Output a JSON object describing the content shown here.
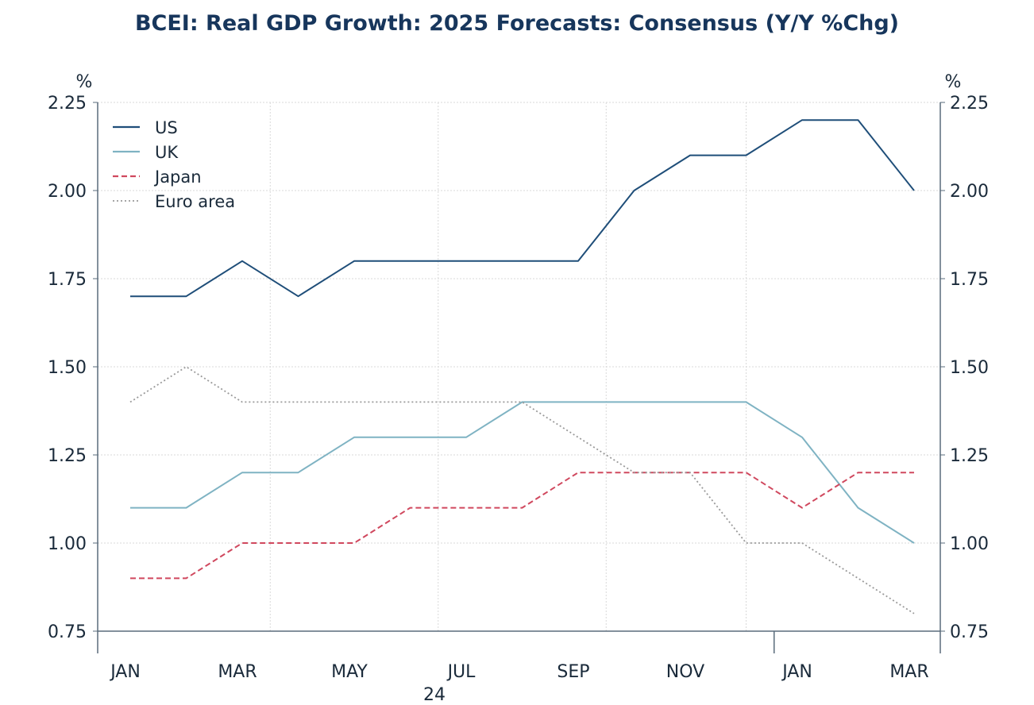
{
  "chart_data": {
    "type": "line",
    "title": "BCEI: Real GDP Growth: 2025 Forecasts: Consensus (Y/Y %Chg)",
    "left_unit": "%",
    "right_unit": "%",
    "xlabel": "",
    "ylabel": "%",
    "ylim": [
      0.75,
      2.25
    ],
    "y_ticks": [
      "0.75",
      "1.00",
      "1.25",
      "1.50",
      "1.75",
      "2.00",
      "2.25"
    ],
    "x_ticks": [
      "JAN",
      "MAR",
      "MAY",
      "JUL",
      "SEP",
      "NOV",
      "JAN",
      "MAR"
    ],
    "x_year_label": "24",
    "x": [
      "2024-01",
      "2024-02",
      "2024-03",
      "2024-04",
      "2024-05",
      "2024-06",
      "2024-07",
      "2024-08",
      "2024-09",
      "2024-10",
      "2024-11",
      "2024-12",
      "2025-01",
      "2025-02",
      "2025-03"
    ],
    "grid": true,
    "legend_position": "top-left",
    "series": [
      {
        "name": "US",
        "color": "#1f4e79",
        "style": "solid",
        "values": [
          1.7,
          1.7,
          1.8,
          1.7,
          1.8,
          1.8,
          1.8,
          1.8,
          1.8,
          2.0,
          2.1,
          2.1,
          2.2,
          2.2,
          2.0
        ]
      },
      {
        "name": "UK",
        "color": "#7fb3c3",
        "style": "solid",
        "values": [
          1.1,
          1.1,
          1.2,
          1.2,
          1.3,
          1.3,
          1.3,
          1.4,
          1.4,
          1.4,
          1.4,
          1.4,
          1.3,
          1.1,
          1.0
        ]
      },
      {
        "name": "Japan",
        "color": "#d0485e",
        "style": "dashed",
        "values": [
          0.9,
          0.9,
          1.0,
          1.0,
          1.0,
          1.1,
          1.1,
          1.1,
          1.2,
          1.2,
          1.2,
          1.2,
          1.1,
          1.2,
          1.2
        ]
      },
      {
        "name": "Euro area",
        "color": "#9a9a9a",
        "style": "dotted",
        "values": [
          1.4,
          1.5,
          1.4,
          1.4,
          1.4,
          1.4,
          1.4,
          1.4,
          1.3,
          1.2,
          1.2,
          1.0,
          1.0,
          0.9,
          0.8
        ]
      }
    ]
  }
}
